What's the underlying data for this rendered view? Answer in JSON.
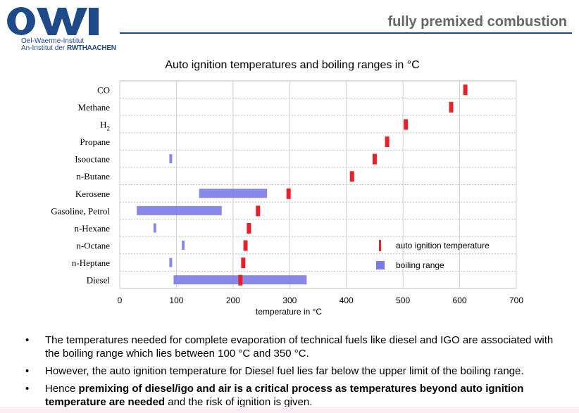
{
  "header": {
    "title": "fully premixed combustion",
    "logo_text": "OWI",
    "logo_line1": "Oel-Waerme-Institut",
    "logo_line2_prefix": "An-Institut der ",
    "logo_line2_brand": "RWTHAACHEN",
    "brand_color": "#1f4a8a"
  },
  "chart_data": {
    "type": "bar",
    "title": "Auto ignition temperatures and boiling ranges in °C",
    "xlabel": "temperature in °C",
    "xlim": [
      0,
      700
    ],
    "xticks": [
      "0",
      "100",
      "200",
      "300",
      "400",
      "500",
      "600",
      "700"
    ],
    "grid": true,
    "legend_placement": "bottom-right",
    "categories": [
      "CO",
      "Methane",
      "H2",
      "Propane",
      "Isooctane",
      "n-Butane",
      "Kerosene",
      "Gasoline, Petrol",
      "n-Hexane",
      "n-Octane",
      "n-Heptane",
      "Diesel"
    ],
    "series": [
      {
        "name": "auto ignition temperature",
        "color": "#e8202a",
        "values": [
          610,
          585,
          505,
          472,
          450,
          410,
          298,
          244,
          228,
          222,
          218,
          213
        ]
      },
      {
        "name": "boiling range",
        "color": "#7b7be6",
        "ranges": [
          null,
          null,
          null,
          null,
          [
            90,
            90
          ],
          null,
          [
            140,
            260
          ],
          [
            30,
            180
          ],
          [
            62,
            62
          ],
          [
            112,
            112
          ],
          [
            90,
            90
          ],
          [
            95,
            330
          ]
        ]
      }
    ]
  },
  "bullets": [
    {
      "text": "The temperatures needed for complete evaporation  of technical  fuels like diesel and IGO are associated with the boiling range which lies between 100 °C and 350 °C."
    },
    {
      "text": "However, the auto ignition temperature for Diesel fuel lies far below the upper limit of the boiling range."
    },
    {
      "prefix": "Hence ",
      "bold": "premixing of diesel/igo and air is a critical process as temperatures beyond auto ignition temperature are needed",
      "suffix": " and the risk of ignition is given."
    }
  ]
}
